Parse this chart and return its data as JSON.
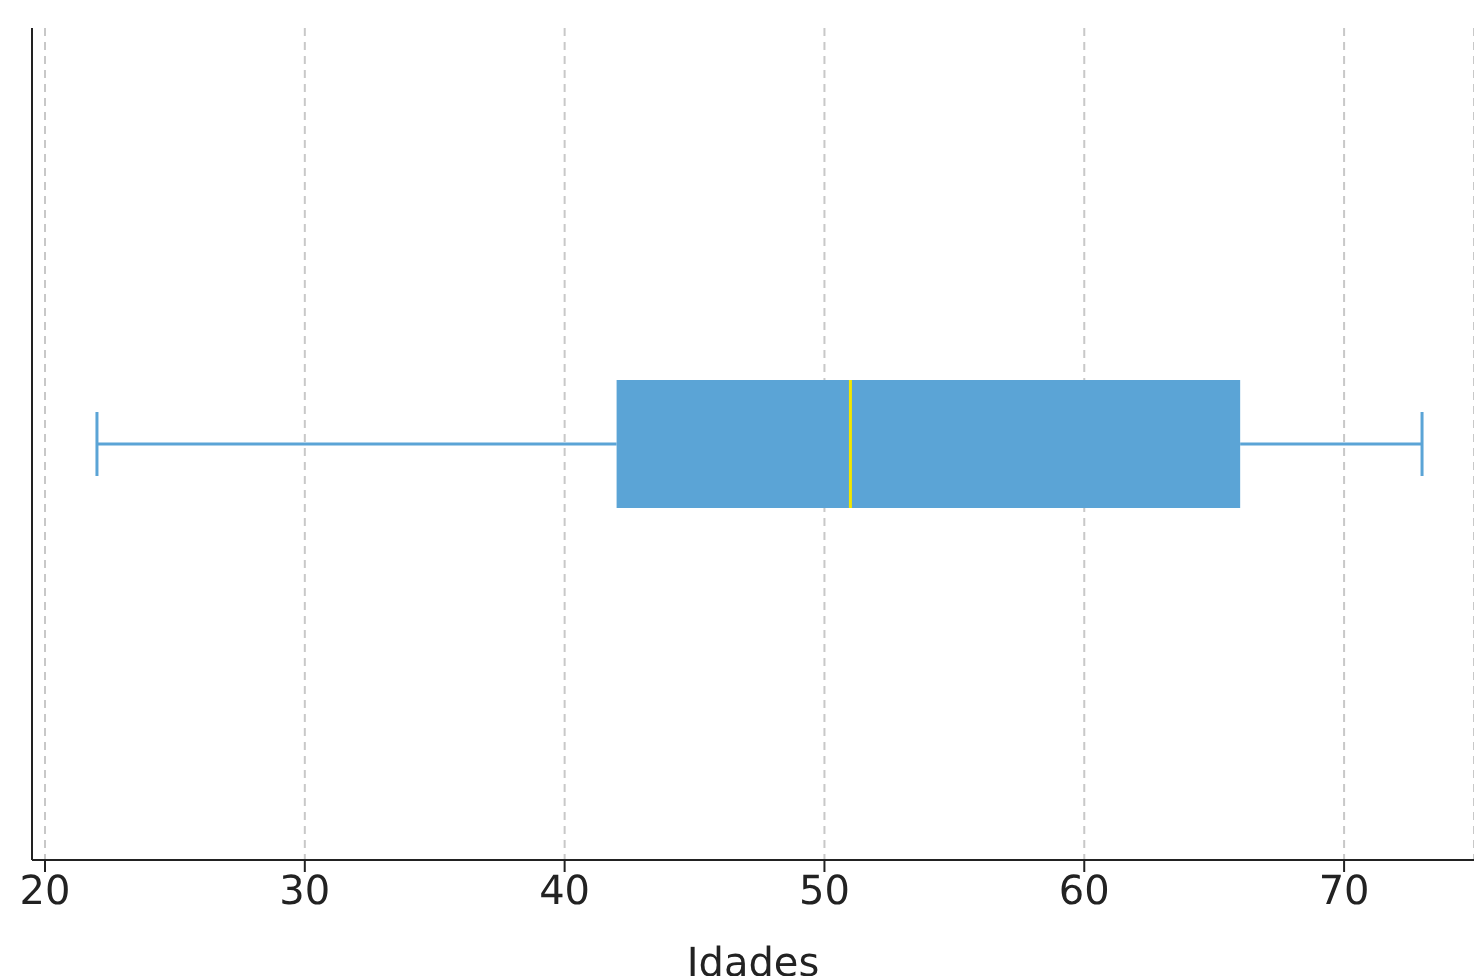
{
  "chart_data": {
    "type": "box",
    "orientation": "horizontal",
    "xlabel": "Idades",
    "categories": [
      null
    ],
    "color": "#5ba4d6",
    "boxes": [
      {
        "low": 22,
        "q1": 42,
        "median": 51,
        "q3": 66,
        "high": 73
      }
    ],
    "xlim": [
      19.5,
      75
    ],
    "xticks": [
      20,
      30,
      40,
      50,
      60,
      70
    ],
    "grid": "x",
    "tick_labels": "x"
  }
}
